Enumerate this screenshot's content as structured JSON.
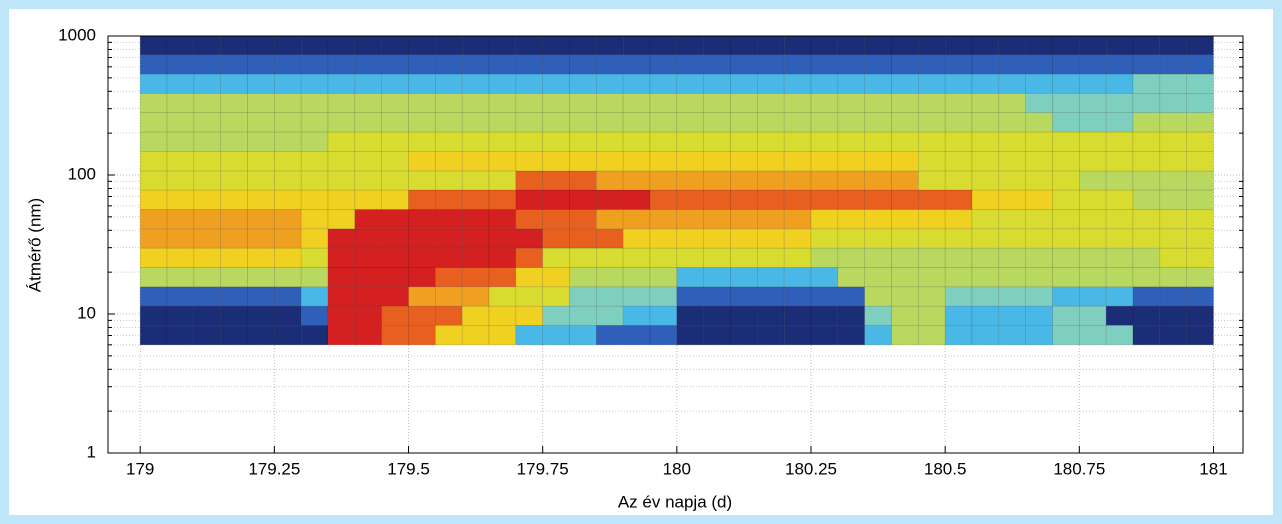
{
  "chart_data": {
    "type": "heatmap",
    "x_label": "Az év napja (d)",
    "y_label": "Átmérő (nm)",
    "xlim": [
      178.94,
      181.055
    ],
    "ylim": [
      1,
      1000
    ],
    "y_scale": "log",
    "grid": true,
    "minor_grid": true,
    "xticks": [
      179,
      179.25,
      179.5,
      179.75,
      180,
      180.25,
      180.5,
      180.75,
      181
    ],
    "yticks": [
      1,
      10,
      100,
      1000
    ],
    "colormap": [
      "#1c2d78",
      "#2f5fb8",
      "#4ab8e6",
      "#7fcfc0",
      "#b8d860",
      "#d8dc30",
      "#f0d020",
      "#f0a020",
      "#e86020",
      "#d42020"
    ],
    "x_bins": [
      179,
      179.05,
      179.1,
      179.15,
      179.2,
      179.25,
      179.3,
      179.35,
      179.4,
      179.45,
      179.5,
      179.55,
      179.6,
      179.65,
      179.7,
      179.75,
      179.8,
      179.85,
      179.9,
      179.95,
      180,
      180.05,
      180.1,
      180.15,
      180.2,
      180.25,
      180.3,
      180.35,
      180.4,
      180.45,
      180.5,
      180.55,
      180.6,
      180.65,
      180.7,
      180.75,
      180.8,
      180.85,
      180.9,
      180.95,
      181
    ],
    "y_bins": [
      6,
      8.3,
      11.4,
      15.7,
      21.6,
      29.8,
      41,
      56.5,
      78,
      107,
      148,
      204,
      281,
      387,
      533,
      735,
      1000
    ],
    "z": [
      [
        0,
        0,
        0,
        0,
        0,
        0,
        0,
        9,
        9,
        8,
        8,
        6,
        6,
        6,
        2,
        2,
        2,
        1,
        1,
        1,
        0,
        0,
        0,
        0,
        0,
        0,
        0,
        2,
        4,
        4,
        2,
        2,
        2,
        2,
        3,
        3,
        3,
        0,
        0,
        0
      ],
      [
        0,
        0,
        0,
        0,
        0,
        0,
        1,
        9,
        9,
        8,
        8,
        8,
        6,
        6,
        6,
        3,
        3,
        3,
        2,
        2,
        0,
        0,
        0,
        0,
        0,
        0,
        0,
        3,
        4,
        4,
        2,
        2,
        2,
        2,
        3,
        3,
        0,
        0,
        0,
        0
      ],
      [
        1,
        1,
        1,
        1,
        1,
        1,
        2,
        9,
        9,
        9,
        7,
        7,
        7,
        5,
        5,
        5,
        3,
        3,
        3,
        3,
        1,
        1,
        1,
        1,
        1,
        1,
        1,
        4,
        4,
        4,
        3,
        3,
        3,
        3,
        2,
        2,
        2,
        1,
        1,
        1
      ],
      [
        4,
        4,
        4,
        4,
        4,
        4,
        4,
        9,
        9,
        9,
        9,
        8,
        8,
        8,
        6,
        6,
        4,
        4,
        4,
        4,
        2,
        2,
        2,
        2,
        2,
        2,
        4,
        4,
        4,
        4,
        4,
        4,
        4,
        4,
        4,
        4,
        4,
        4,
        4,
        4
      ],
      [
        6,
        6,
        6,
        6,
        6,
        6,
        5,
        9,
        9,
        9,
        9,
        9,
        9,
        9,
        8,
        5,
        5,
        5,
        5,
        5,
        5,
        5,
        5,
        5,
        5,
        4,
        4,
        4,
        4,
        4,
        4,
        4,
        4,
        4,
        4,
        4,
        4,
        4,
        5,
        5
      ],
      [
        7,
        7,
        7,
        7,
        7,
        7,
        6,
        9,
        9,
        9,
        9,
        9,
        9,
        9,
        9,
        8,
        8,
        8,
        6,
        6,
        6,
        6,
        6,
        6,
        6,
        5,
        5,
        5,
        5,
        5,
        5,
        5,
        5,
        5,
        5,
        5,
        5,
        5,
        5,
        5
      ],
      [
        7,
        7,
        7,
        7,
        7,
        7,
        6,
        6,
        9,
        9,
        9,
        9,
        9,
        9,
        8,
        8,
        8,
        7,
        7,
        7,
        7,
        7,
        7,
        7,
        7,
        6,
        6,
        6,
        6,
        6,
        6,
        5,
        5,
        5,
        5,
        5,
        5,
        5,
        5,
        5
      ],
      [
        6,
        6,
        6,
        6,
        6,
        6,
        6,
        6,
        6,
        6,
        8,
        8,
        8,
        8,
        9,
        9,
        9,
        9,
        9,
        8,
        8,
        8,
        8,
        8,
        8,
        8,
        8,
        8,
        8,
        8,
        8,
        6,
        6,
        6,
        5,
        5,
        5,
        4,
        4,
        4
      ],
      [
        5,
        5,
        5,
        5,
        5,
        5,
        5,
        5,
        5,
        5,
        5,
        5,
        5,
        5,
        8,
        8,
        8,
        7,
        7,
        7,
        7,
        7,
        7,
        7,
        7,
        7,
        7,
        7,
        7,
        5,
        5,
        5,
        5,
        5,
        5,
        4,
        4,
        4,
        4,
        4
      ],
      [
        5,
        5,
        5,
        5,
        5,
        5,
        5,
        5,
        5,
        5,
        6,
        6,
        6,
        6,
        6,
        6,
        6,
        6,
        6,
        6,
        6,
        6,
        6,
        6,
        6,
        6,
        6,
        6,
        6,
        5,
        5,
        5,
        5,
        5,
        5,
        5,
        5,
        5,
        5,
        5
      ],
      [
        4,
        4,
        4,
        4,
        4,
        4,
        4,
        5,
        5,
        5,
        5,
        5,
        5,
        5,
        5,
        5,
        5,
        5,
        5,
        5,
        5,
        5,
        5,
        5,
        5,
        5,
        5,
        5,
        5,
        5,
        5,
        5,
        5,
        5,
        5,
        5,
        5,
        5,
        5,
        5
      ],
      [
        4,
        4,
        4,
        4,
        4,
        4,
        4,
        4,
        4,
        4,
        4,
        4,
        4,
        4,
        4,
        4,
        4,
        4,
        4,
        4,
        4,
        4,
        4,
        4,
        4,
        4,
        4,
        4,
        4,
        4,
        4,
        4,
        4,
        4,
        3,
        3,
        3,
        4,
        4,
        4
      ],
      [
        4,
        4,
        4,
        4,
        4,
        4,
        4,
        4,
        4,
        4,
        4,
        4,
        4,
        4,
        4,
        4,
        4,
        4,
        4,
        4,
        4,
        4,
        4,
        4,
        4,
        4,
        4,
        4,
        4,
        4,
        4,
        4,
        4,
        3,
        3,
        3,
        3,
        3,
        3,
        3
      ],
      [
        2,
        2,
        2,
        2,
        2,
        2,
        2,
        2,
        2,
        2,
        2,
        2,
        2,
        2,
        2,
        2,
        2,
        2,
        2,
        2,
        2,
        2,
        2,
        2,
        2,
        2,
        2,
        2,
        2,
        2,
        2,
        2,
        2,
        2,
        2,
        2,
        2,
        3,
        3,
        3
      ],
      [
        1,
        1,
        1,
        1,
        1,
        1,
        1,
        1,
        1,
        1,
        1,
        1,
        1,
        1,
        1,
        1,
        1,
        1,
        1,
        1,
        1,
        1,
        1,
        1,
        1,
        1,
        1,
        1,
        1,
        1,
        1,
        1,
        1,
        1,
        1,
        1,
        1,
        1,
        1,
        1
      ],
      [
        0,
        0,
        0,
        0,
        0,
        0,
        0,
        0,
        0,
        0,
        0,
        0,
        0,
        0,
        0,
        0,
        0,
        0,
        0,
        0,
        0,
        0,
        0,
        0,
        0,
        0,
        0,
        0,
        0,
        0,
        0,
        0,
        0,
        0,
        0,
        0,
        0,
        0,
        0,
        0
      ]
    ]
  }
}
